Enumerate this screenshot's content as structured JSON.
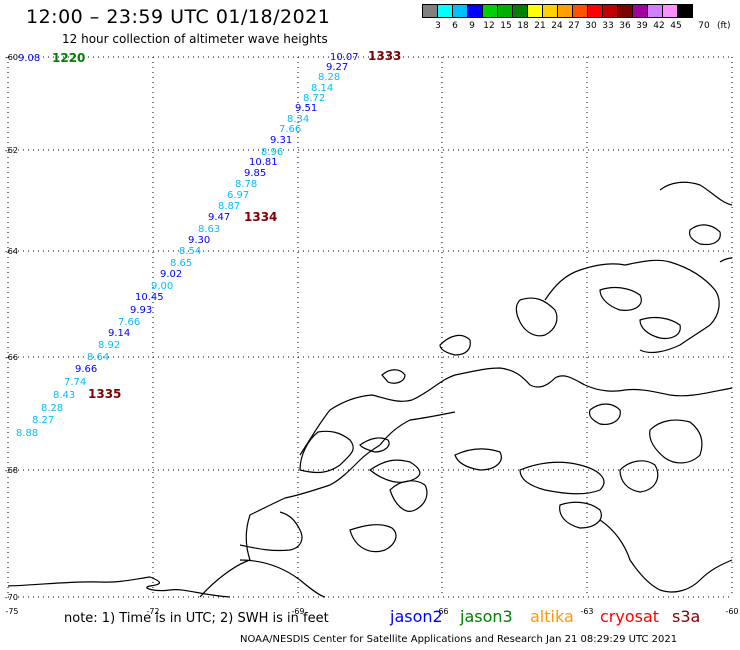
{
  "header": {
    "title": "12:00 – 23:59 UTC 01/18/2021",
    "subtitle": "12 hour collection of altimeter wave heights"
  },
  "colorbar": {
    "colors": [
      "#808080",
      "#00ffff",
      "#00bfff",
      "#0000ff",
      "#00d000",
      "#00b000",
      "#008000",
      "#ffff00",
      "#ffd000",
      "#ffa000",
      "#ff5000",
      "#ff0000",
      "#c00000",
      "#800000",
      "#a000a0",
      "#d080ff",
      "#ff90ff",
      "#000000"
    ],
    "labels": [
      "3",
      "6",
      "9",
      "12",
      "15",
      "18",
      "21",
      "24",
      "27",
      "30",
      "33",
      "36",
      "39",
      "42",
      "45",
      "70"
    ],
    "unit": "(ft)"
  },
  "map": {
    "lat_labels": [
      "-60",
      "-62",
      "-64",
      "-66",
      "-68",
      "-70"
    ],
    "lon_labels": [
      "-75",
      "-72",
      "-69",
      "-66",
      "-63",
      "-60"
    ],
    "orbit_labels": [
      {
        "text": "1220",
        "color": "#008000"
      },
      {
        "text": "1333",
        "color": "#800000"
      },
      {
        "text": "1334",
        "color": "#800000"
      },
      {
        "text": "1335",
        "color": "#800000"
      }
    ],
    "wave_heights": [
      {
        "v": "9.08",
        "c": "#0000ff"
      },
      {
        "v": "10.07",
        "c": "#0000ff"
      },
      {
        "v": "9.27",
        "c": "#0000ff"
      },
      {
        "v": "8.28",
        "c": "#00bfff"
      },
      {
        "v": "8.14",
        "c": "#00bfff"
      },
      {
        "v": "8.72",
        "c": "#00bfff"
      },
      {
        "v": "9.51",
        "c": "#0000ff"
      },
      {
        "v": "8.34",
        "c": "#00bfff"
      },
      {
        "v": "7.66",
        "c": "#00bfff"
      },
      {
        "v": "9.31",
        "c": "#0000ff"
      },
      {
        "v": "8.96",
        "c": "#00bfff"
      },
      {
        "v": "10.81",
        "c": "#0000ff"
      },
      {
        "v": "9.85",
        "c": "#0000ff"
      },
      {
        "v": "8.78",
        "c": "#00bfff"
      },
      {
        "v": "6.97",
        "c": "#00bfff"
      },
      {
        "v": "8.87",
        "c": "#00bfff"
      },
      {
        "v": "9.47",
        "c": "#0000ff"
      },
      {
        "v": "8.63",
        "c": "#00bfff"
      },
      {
        "v": "9.30",
        "c": "#0000ff"
      },
      {
        "v": "8.54",
        "c": "#00bfff"
      },
      {
        "v": "8.65",
        "c": "#00bfff"
      },
      {
        "v": "9.02",
        "c": "#0000ff"
      },
      {
        "v": "9.00",
        "c": "#00bfff"
      },
      {
        "v": "10.45",
        "c": "#0000ff"
      },
      {
        "v": "9.93",
        "c": "#0000ff"
      },
      {
        "v": "7.66",
        "c": "#00bfff"
      },
      {
        "v": "9.14",
        "c": "#0000ff"
      },
      {
        "v": "8.92",
        "c": "#00bfff"
      },
      {
        "v": "8.64",
        "c": "#00bfff"
      },
      {
        "v": "9.66",
        "c": "#0000ff"
      },
      {
        "v": "7.74",
        "c": "#00bfff"
      },
      {
        "v": "8.43",
        "c": "#00bfff"
      },
      {
        "v": "8.28",
        "c": "#00bfff"
      },
      {
        "v": "8.27",
        "c": "#00bfff"
      },
      {
        "v": "8.88",
        "c": "#00bfff"
      }
    ]
  },
  "satellites": [
    {
      "name": "jason2",
      "color": "#0000ff"
    },
    {
      "name": "jason3",
      "color": "#008000"
    },
    {
      "name": "altika",
      "color": "#ff9900"
    },
    {
      "name": "cryosat",
      "color": "#ff0000"
    },
    {
      "name": "s3a",
      "color": "#800000"
    }
  ],
  "footer": {
    "note": "note:  1) Time is in UTC;  2) SWH is in feet",
    "credit": "NOAA/NESDIS Center for Satellite Applications and Research     Jan 21 08:29:29 UTC 2021"
  }
}
